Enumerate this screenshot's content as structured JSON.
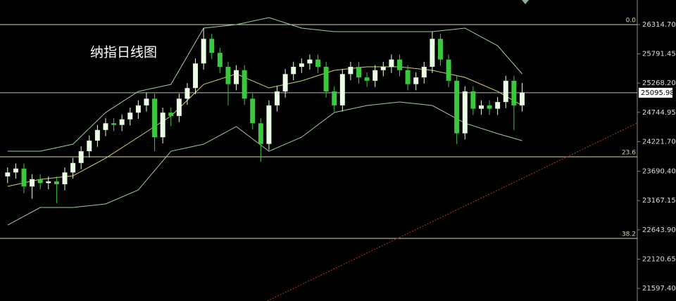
{
  "chart_data": {
    "type": "candlestick",
    "title": "纳指日线图",
    "xlim": [
      -0.5,
      77.1
    ],
    "ylim": [
      21371,
      26755
    ],
    "yticks": [
      {
        "value": 26314.7,
        "label": "26314.70"
      },
      {
        "value": 25791.45,
        "label": "25791.45"
      },
      {
        "value": 25268.2,
        "label": "25268.20"
      },
      {
        "value": 24744.95,
        "label": "24744.95"
      },
      {
        "value": 24221.7,
        "label": "24221.70"
      },
      {
        "value": 23690.4,
        "label": "23690.40"
      },
      {
        "value": 23167.15,
        "label": "23167.15"
      },
      {
        "value": 22643.9,
        "label": "22643.90"
      },
      {
        "value": 22120.65,
        "label": "22120.65"
      },
      {
        "value": 21597.4,
        "label": "21597.40"
      }
    ],
    "up_color": "#eaffe4",
    "down_color": "#3cc83c",
    "open": [
      23600,
      23670,
      23740,
      23420,
      23550,
      23480,
      23510,
      23460,
      23670,
      23840,
      24050,
      24240,
      24430,
      24550,
      24520,
      24620,
      24740,
      24870,
      24990,
      24300,
      24740,
      24680,
      24990,
      25180,
      25620,
      26060,
      25810,
      25560,
      25250,
      25500,
      24990,
      24550,
      24180,
      24870,
      25120,
      25430,
      25560,
      25620,
      25690,
      25560,
      25120,
      24870,
      25430,
      25560,
      25370,
      25310,
      25500,
      25560,
      25690,
      25500,
      25250,
      25370,
      25560,
      26060,
      25690,
      25310,
      24370,
      25120,
      24810,
      24870,
      24810,
      24930,
      25310,
      24870
    ],
    "high": [
      23760,
      23830,
      23830,
      23640,
      23640,
      23600,
      23600,
      23760,
      23930,
      24140,
      24330,
      24520,
      24640,
      24640,
      24710,
      24830,
      24960,
      25100,
      25080,
      24830,
      24830,
      25080,
      25270,
      25710,
      26250,
      26150,
      25900,
      25650,
      25590,
      25590,
      25080,
      24640,
      24960,
      25210,
      25520,
      25650,
      25710,
      25780,
      25780,
      25650,
      25210,
      25520,
      25650,
      25650,
      25460,
      25590,
      25650,
      25780,
      25780,
      25590,
      25460,
      25650,
      26190,
      26150,
      25780,
      25400,
      25210,
      25210,
      24960,
      24960,
      25020,
      25400,
      25400,
      25270
    ],
    "low": [
      23480,
      23560,
      23300,
      23200,
      23370,
      23370,
      23120,
      23350,
      23560,
      23730,
      23940,
      24130,
      24320,
      24410,
      24410,
      24510,
      24630,
      24760,
      24050,
      24190,
      24500,
      24570,
      24880,
      25070,
      25510,
      25700,
      25450,
      24870,
      25140,
      24880,
      24440,
      23860,
      24070,
      24760,
      25010,
      25320,
      25450,
      25510,
      25450,
      25010,
      24760,
      24760,
      25320,
      25260,
      25200,
      25200,
      25390,
      25450,
      25390,
      25140,
      25140,
      25260,
      25450,
      25580,
      25200,
      24180,
      24260,
      24700,
      24700,
      24700,
      24700,
      24820,
      24430,
      24760
    ],
    "close": [
      23670,
      23740,
      23420,
      23550,
      23480,
      23510,
      23460,
      23670,
      23840,
      24050,
      24240,
      24430,
      24550,
      24520,
      24620,
      24740,
      24870,
      24990,
      24300,
      24740,
      24680,
      24990,
      25180,
      25620,
      26060,
      25810,
      25560,
      25250,
      25500,
      24990,
      24550,
      24180,
      24870,
      25120,
      25430,
      25560,
      25620,
      25690,
      25560,
      25120,
      24870,
      25430,
      25560,
      25370,
      25310,
      25500,
      25560,
      25690,
      25500,
      25250,
      25370,
      25560,
      26060,
      25690,
      25310,
      24370,
      25120,
      24810,
      24870,
      24810,
      24930,
      25310,
      24870,
      25100
    ],
    "lines": [
      {
        "color": "#9ccf9c",
        "x": [
          0,
          4,
          8,
          12,
          16,
          20,
          24,
          28,
          32,
          36,
          40,
          44,
          48,
          52,
          56,
          60,
          63
        ],
        "values": [
          24050,
          24050,
          24176,
          24742,
          25120,
          25245,
          26252,
          26315,
          26440,
          26252,
          26189,
          26189,
          26189,
          26189,
          26252,
          25937,
          25434
        ]
      },
      {
        "color": "#d8cf62",
        "x": [
          0,
          4,
          8,
          12,
          16,
          20,
          24,
          28,
          32,
          36,
          40,
          44,
          48,
          52,
          56,
          60,
          63
        ],
        "values": [
          23421,
          23547,
          23610,
          23925,
          24302,
          24679,
          25245,
          25434,
          25183,
          25308,
          25497,
          25560,
          25560,
          25497,
          25371,
          25120,
          24868
        ]
      },
      {
        "color": "#9ccf9c",
        "x": [
          0,
          4,
          8,
          12,
          16,
          20,
          24,
          28,
          32,
          36,
          40,
          44,
          48,
          52,
          56,
          60,
          63
        ],
        "values": [
          22729,
          23044,
          23044,
          23107,
          23358,
          24050,
          24176,
          24491,
          24050,
          24302,
          24742,
          24868,
          24931,
          24868,
          24553,
          24365,
          24239
        ]
      }
    ],
    "trendline": {
      "color": "#c83232",
      "x": [
        31.8,
        77.1
      ],
      "values": [
        21371,
        24554
      ]
    },
    "levels": [
      {
        "value": 26314.7,
        "label": "0.0"
      },
      {
        "value": 23950,
        "label": "23.6"
      },
      {
        "value": 22491,
        "label": "38.2"
      }
    ],
    "level_color": "#d6d6a8",
    "current_price": 25095.98
  }
}
